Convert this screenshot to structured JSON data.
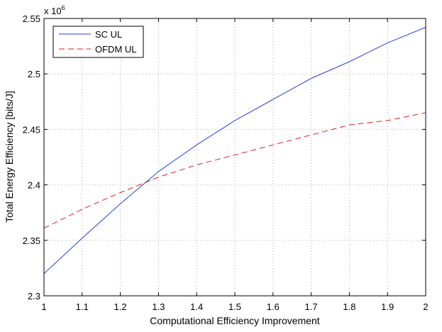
{
  "chart_data": {
    "type": "line",
    "xlabel": "Computational Efficiency Improvement",
    "ylabel": "Total Energy Efficiency [bits/J]",
    "y_multiplier_label": "x 10",
    "y_multiplier_exponent": "6",
    "xlim": [
      1,
      2
    ],
    "ylim": [
      2.3,
      2.55
    ],
    "xticks": [
      "1",
      "1.1",
      "1.2",
      "1.3",
      "1.4",
      "1.5",
      "1.6",
      "1.7",
      "1.8",
      "1.9",
      "2"
    ],
    "yticks": [
      "2.3",
      "2.35",
      "2.4",
      "2.45",
      "2.5",
      "2.55"
    ],
    "grid": true,
    "legend_position": "top-left",
    "series": [
      {
        "name": "SC UL",
        "color": "#2b3fe0",
        "style": "solid",
        "x": [
          1,
          1.1,
          1.2,
          1.3,
          1.4,
          1.5,
          1.6,
          1.7,
          1.8,
          1.9,
          2
        ],
        "values": [
          2.32,
          2.352,
          2.383,
          2.412,
          2.436,
          2.458,
          2.477,
          2.496,
          2.511,
          2.528,
          2.542
        ]
      },
      {
        "name": "OFDM UL",
        "color": "#e01e1e",
        "style": "dashed",
        "x": [
          1,
          1.1,
          1.2,
          1.3,
          1.4,
          1.5,
          1.6,
          1.7,
          1.8,
          1.9,
          2
        ],
        "values": [
          2.361,
          2.378,
          2.393,
          2.407,
          2.418,
          2.427,
          2.436,
          2.445,
          2.454,
          2.458,
          2.465
        ]
      }
    ]
  }
}
